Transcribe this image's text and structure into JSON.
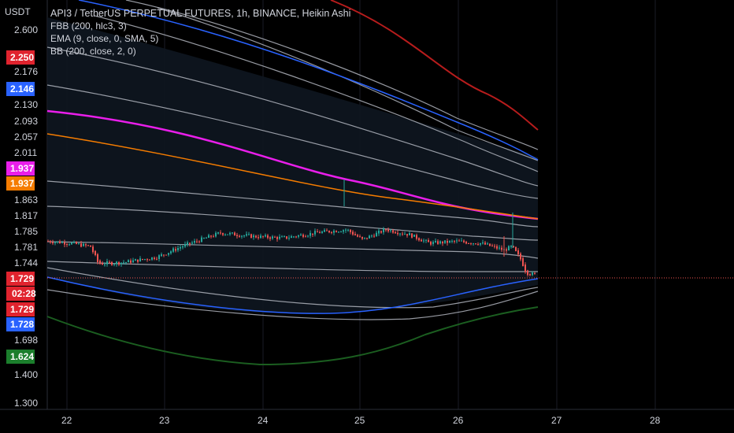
{
  "chart_data": {
    "type": "candlestick",
    "title": "API3 / TetherUS PERPETUAL FUTURES, 1h, BINANCE, Heikin Ashi",
    "indicators": [
      "FBB (200, hlc3, 3)",
      "EMA (9, close, 0, SMA, 5)",
      "BB (200, close, 2, 0)"
    ],
    "y_unit": "USDT",
    "y_ticks": [
      "2.600",
      "2.176",
      "2.130",
      "2.093",
      "2.057",
      "2.011",
      "1.863",
      "1.817",
      "1.785",
      "1.781",
      "1.744",
      "1.698",
      "1.400",
      "1.300"
    ],
    "x_ticks": [
      "22",
      "23",
      "24",
      "25",
      "26",
      "27",
      "28"
    ],
    "price_labels": [
      {
        "text": "2.250",
        "color": "#e0232e"
      },
      {
        "text": "2.146",
        "color": "#2962ff"
      },
      {
        "text": "1.937",
        "color": "#e91eea"
      },
      {
        "text": "1.937",
        "color": "#f57c00"
      },
      {
        "text": "1.729",
        "color": "#e0232e"
      },
      {
        "text": "02:28",
        "color": "#e0232e"
      },
      {
        "text": "1.729",
        "color": "#e0232e"
      },
      {
        "text": "1.728",
        "color": "#2962ff"
      },
      {
        "text": "1.624",
        "color": "#1b7e2c"
      }
    ],
    "last_price": 1.729,
    "colors": {
      "up": "#26a69a",
      "down": "#ef5350",
      "fbb_upper": "#b71c1c",
      "basis_blue": "#2962ff",
      "ema": "#e91eea",
      "orange": "#f57c00",
      "lower_green": "#1b5e20",
      "band": "#b2b5be"
    }
  }
}
